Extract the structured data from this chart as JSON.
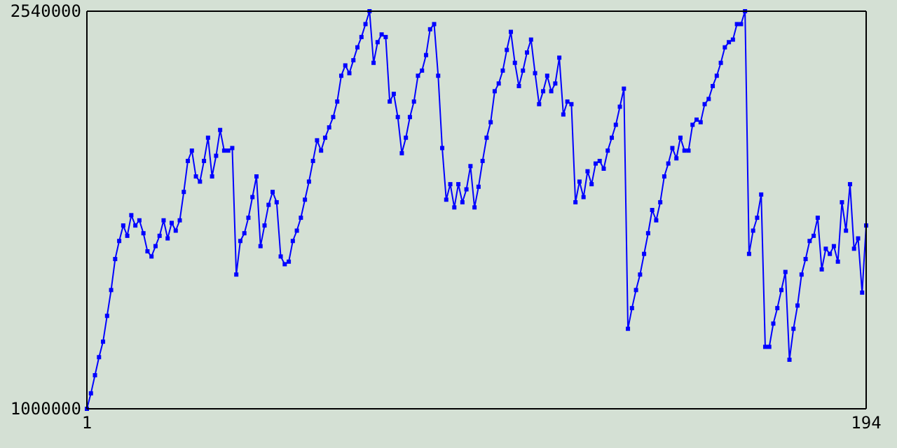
{
  "chart_data": {
    "type": "line",
    "xlim": [
      1,
      194
    ],
    "xticks": [
      1,
      194
    ],
    "ylim": [
      1000000,
      2540000
    ],
    "yticks": [
      1000000,
      2540000
    ],
    "marker": "square",
    "line_style": "solid",
    "series": [
      {
        "color": "#0000ff",
        "x": [
          1,
          2,
          3,
          4,
          5,
          6,
          7,
          8,
          9,
          10,
          11,
          12,
          13,
          14,
          15,
          16,
          17,
          18,
          19,
          20,
          21,
          22,
          23,
          24,
          25,
          26,
          27,
          28,
          29,
          30,
          31,
          32,
          33,
          34,
          35,
          36,
          37,
          38,
          39,
          40,
          41,
          42,
          43,
          44,
          45,
          46,
          47,
          48,
          49,
          50,
          51,
          52,
          53,
          54,
          55,
          56,
          57,
          58,
          59,
          60,
          61,
          62,
          63,
          64,
          65,
          66,
          67,
          68,
          69,
          70,
          71,
          72,
          73,
          74,
          75,
          76,
          77,
          78,
          79,
          80,
          81,
          82,
          83,
          84,
          85,
          86,
          87,
          88,
          89,
          90,
          91,
          92,
          93,
          94,
          95,
          96,
          97,
          98,
          99,
          100,
          101,
          102,
          103,
          104,
          105,
          106,
          107,
          108,
          109,
          110,
          111,
          112,
          113,
          114,
          115,
          116,
          117,
          118,
          119,
          120,
          121,
          122,
          123,
          124,
          125,
          126,
          127,
          128,
          129,
          130,
          131,
          132,
          133,
          134,
          135,
          136,
          137,
          138,
          139,
          140,
          141,
          142,
          143,
          144,
          145,
          146,
          147,
          148,
          149,
          150,
          151,
          152,
          153,
          154,
          155,
          156,
          157,
          158,
          159,
          160,
          161,
          162,
          163,
          164,
          165,
          166,
          167,
          168,
          169,
          170,
          171,
          172,
          173,
          174,
          175,
          176,
          177,
          178,
          179,
          180,
          181,
          182,
          183,
          184,
          185,
          186,
          187,
          188,
          189,
          190,
          191,
          192,
          193,
          194
        ],
        "values": [
          1000000,
          1060000,
          1130000,
          1200000,
          1260000,
          1360000,
          1460000,
          1580000,
          1650000,
          1710000,
          1670000,
          1750000,
          1710000,
          1730000,
          1680000,
          1610000,
          1590000,
          1630000,
          1670000,
          1730000,
          1660000,
          1720000,
          1690000,
          1730000,
          1840000,
          1960000,
          2000000,
          1900000,
          1880000,
          1960000,
          2050000,
          1900000,
          1980000,
          2080000,
          2000000,
          2000000,
          2010000,
          1520000,
          1650000,
          1680000,
          1740000,
          1820000,
          1900000,
          1630000,
          1710000,
          1790000,
          1840000,
          1800000,
          1590000,
          1560000,
          1570000,
          1650000,
          1690000,
          1740000,
          1810000,
          1880000,
          1960000,
          2040000,
          2000000,
          2050000,
          2090000,
          2130000,
          2190000,
          2290000,
          2330000,
          2300000,
          2350000,
          2400000,
          2440000,
          2490000,
          2540000,
          2340000,
          2420000,
          2450000,
          2440000,
          2190000,
          2220000,
          2130000,
          1990000,
          2050000,
          2130000,
          2190000,
          2290000,
          2310000,
          2370000,
          2470000,
          2490000,
          2290000,
          2010000,
          1810000,
          1870000,
          1780000,
          1870000,
          1800000,
          1850000,
          1940000,
          1780000,
          1860000,
          1960000,
          2050000,
          2110000,
          2230000,
          2260000,
          2310000,
          2390000,
          2460000,
          2340000,
          2250000,
          2310000,
          2380000,
          2430000,
          2300000,
          2180000,
          2230000,
          2290000,
          2230000,
          2260000,
          2360000,
          2140000,
          2190000,
          2180000,
          1800000,
          1880000,
          1820000,
          1920000,
          1870000,
          1950000,
          1960000,
          1930000,
          2000000,
          2050000,
          2100000,
          2170000,
          2240000,
          1310000,
          1390000,
          1460000,
          1520000,
          1600000,
          1680000,
          1770000,
          1730000,
          1800000,
          1900000,
          1950000,
          2010000,
          1970000,
          2050000,
          2000000,
          2000000,
          2100000,
          2120000,
          2110000,
          2180000,
          2200000,
          2250000,
          2290000,
          2340000,
          2400000,
          2420000,
          2430000,
          2490000,
          2490000,
          2540000,
          1600000,
          1690000,
          1740000,
          1830000,
          1240000,
          1240000,
          1330000,
          1390000,
          1460000,
          1530000,
          1190000,
          1310000,
          1400000,
          1520000,
          1580000,
          1650000,
          1670000,
          1740000,
          1540000,
          1620000,
          1600000,
          1630000,
          1570000,
          1800000,
          1690000,
          1870000,
          1620000,
          1660000,
          1450000,
          1710000
        ]
      }
    ]
  }
}
